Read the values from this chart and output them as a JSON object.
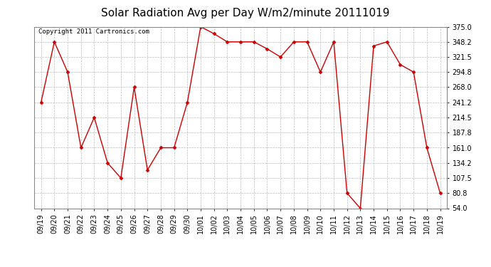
{
  "title": "Solar Radiation Avg per Day W/m2/minute 20111019",
  "copyright": "Copyright 2011 Cartronics.com",
  "dates": [
    "09/19",
    "09/20",
    "09/21",
    "09/22",
    "09/23",
    "09/24",
    "09/25",
    "09/26",
    "09/27",
    "09/28",
    "09/29",
    "09/30",
    "10/01",
    "10/02",
    "10/03",
    "10/04",
    "10/05",
    "10/06",
    "10/07",
    "10/08",
    "10/09",
    "10/10",
    "10/11",
    "10/12",
    "10/13",
    "10/14",
    "10/15",
    "10/16",
    "10/17",
    "10/18",
    "10/19"
  ],
  "values": [
    241.2,
    348.2,
    294.8,
    161.0,
    214.5,
    134.2,
    107.5,
    268.0,
    121.6,
    161.0,
    161.0,
    241.2,
    375.0,
    362.6,
    348.2,
    348.2,
    348.2,
    335.8,
    321.5,
    348.2,
    348.2,
    294.8,
    348.2,
    80.8,
    54.0,
    341.0,
    348.2,
    308.1,
    294.8,
    161.0,
    80.8
  ],
  "line_color": "#cc0000",
  "marker": "D",
  "marker_size": 2.5,
  "marker_color": "#cc0000",
  "background_color": "#ffffff",
  "grid_color": "#bbbbbb",
  "yticks": [
    54.0,
    80.8,
    107.5,
    134.2,
    161.0,
    187.8,
    214.5,
    241.2,
    268.0,
    294.8,
    321.5,
    348.2,
    375.0
  ],
  "ylim": [
    54.0,
    375.0
  ],
  "title_fontsize": 11,
  "copyright_fontsize": 6.5,
  "tick_fontsize": 7
}
